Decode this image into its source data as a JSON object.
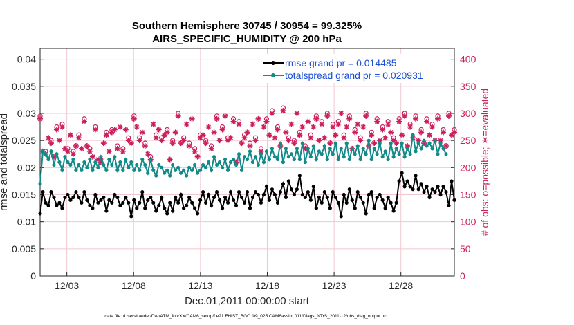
{
  "chart_data": {
    "type": "line",
    "title": "Southern Hemisphere 30745 / 30954 = 99.325%",
    "subtitle": "AIRS_SPECIFIC_HUMIDITY @ 200 hPa",
    "xlabel": "Dec.01,2011 00:00:00 start",
    "ylabel": "rmse and totalspread",
    "y2label": "# of obs: o=possible; ∗=evaluated",
    "footer": "data file: /Users/raeder/DAI/ATM_forcXX/CAM6_setup/f.e21.FHIST_BGC.f09_025.CAM6assim.011/Diags_NTrS_2011-12/obs_diag_output.nc",
    "x_ticks": [
      "12/03",
      "12/08",
      "12/13",
      "12/18",
      "12/23",
      "12/28"
    ],
    "x_tick_days": [
      3,
      8,
      13,
      18,
      23,
      28
    ],
    "xlim": [
      1,
      32
    ],
    "ylim": [
      0,
      0.042
    ],
    "y_ticks": [
      "0",
      "0.005",
      "0.01",
      "0.015",
      "0.02",
      "0.025",
      "0.03",
      "0.035",
      "0.04"
    ],
    "y2lim": [
      0,
      420
    ],
    "y2_ticks": [
      "0",
      "50",
      "100",
      "150",
      "200",
      "250",
      "300",
      "350",
      "400"
    ],
    "grid": true,
    "legend_position": "top-right",
    "colors": {
      "rmse": "#000000",
      "totalspread": "#138a8a",
      "obs": "#cc1f5c",
      "legend_text": "#1a4fd6",
      "grid": "#f0c8cf"
    },
    "series": [
      {
        "name": "rmse grand pr = 0.014485",
        "axis": "left",
        "values": [
          0.0115,
          0.0155,
          0.0135,
          0.013,
          0.0155,
          0.0145,
          0.013,
          0.0135,
          0.0125,
          0.0145,
          0.015,
          0.014,
          0.0145,
          0.0155,
          0.0145,
          0.0135,
          0.0155,
          0.014,
          0.013,
          0.0125,
          0.015,
          0.0135,
          0.014,
          0.0145,
          0.012,
          0.014,
          0.0135,
          0.015,
          0.0145,
          0.013,
          0.0135,
          0.0145,
          0.0135,
          0.011,
          0.014,
          0.0125,
          0.0135,
          0.0155,
          0.0125,
          0.014,
          0.0145,
          0.0135,
          0.012,
          0.013,
          0.0145,
          0.0125,
          0.0115,
          0.0135,
          0.012,
          0.0145,
          0.0135,
          0.015,
          0.0125,
          0.013,
          0.0145,
          0.0135,
          0.0125,
          0.0115,
          0.014,
          0.0155,
          0.0135,
          0.015,
          0.013,
          0.0145,
          0.0155,
          0.014,
          0.0125,
          0.0145,
          0.0135,
          0.0155,
          0.014,
          0.013,
          0.0155,
          0.0145,
          0.0135,
          0.0155,
          0.0125,
          0.0145,
          0.0155,
          0.015,
          0.0135,
          0.015,
          0.0165,
          0.014,
          0.016,
          0.015,
          0.0135,
          0.0155,
          0.017,
          0.0145,
          0.0175,
          0.016,
          0.015,
          0.016,
          0.0185,
          0.015,
          0.0145,
          0.0155,
          0.014,
          0.0165,
          0.0125,
          0.0145,
          0.0135,
          0.0155,
          0.0145,
          0.0125,
          0.0155,
          0.0145,
          0.0135,
          0.011,
          0.015,
          0.0135,
          0.016,
          0.014,
          0.0125,
          0.0155,
          0.0145,
          0.0135,
          0.0115,
          0.015,
          0.0155,
          0.0125,
          0.0145,
          0.015,
          0.014,
          0.0125,
          0.0145,
          0.0135,
          0.012,
          0.0135,
          0.0175,
          0.019,
          0.0165,
          0.0175,
          0.0165,
          0.016,
          0.0185,
          0.016,
          0.017,
          0.0155,
          0.0165,
          0.0145,
          0.016,
          0.0155,
          0.0165,
          0.015,
          0.0165,
          0.0155,
          0.013,
          0.0175,
          0.014
        ]
      },
      {
        "name": "totalspread grand pr = 0.020931",
        "axis": "left",
        "values": [
          0.017,
          0.023,
          0.0225,
          0.0215,
          0.023,
          0.0205,
          0.0225,
          0.021,
          0.0195,
          0.022,
          0.021,
          0.0205,
          0.0215,
          0.0195,
          0.0205,
          0.0195,
          0.021,
          0.02,
          0.0215,
          0.0195,
          0.021,
          0.02,
          0.022,
          0.0205,
          0.0195,
          0.0215,
          0.0205,
          0.022,
          0.0195,
          0.021,
          0.0195,
          0.0215,
          0.02,
          0.021,
          0.0195,
          0.0205,
          0.0195,
          0.0215,
          0.0205,
          0.019,
          0.0215,
          0.0195,
          0.0185,
          0.0205,
          0.02,
          0.019,
          0.0195,
          0.0185,
          0.0205,
          0.0195,
          0.02,
          0.019,
          0.0195,
          0.0185,
          0.02,
          0.0195,
          0.0205,
          0.019,
          0.0195,
          0.0205,
          0.02,
          0.021,
          0.0195,
          0.022,
          0.0205,
          0.021,
          0.02,
          0.0215,
          0.0195,
          0.021,
          0.0215,
          0.0205,
          0.0225,
          0.0195,
          0.022,
          0.0215,
          0.023,
          0.021,
          0.022,
          0.0205,
          0.0225,
          0.021,
          0.023,
          0.0215,
          0.0235,
          0.022,
          0.0215,
          0.0245,
          0.021,
          0.0235,
          0.022,
          0.0225,
          0.0215,
          0.0235,
          0.0215,
          0.0245,
          0.021,
          0.0235,
          0.022,
          0.024,
          0.0215,
          0.023,
          0.0225,
          0.024,
          0.0215,
          0.0235,
          0.0225,
          0.0245,
          0.0215,
          0.0235,
          0.022,
          0.0245,
          0.0215,
          0.0235,
          0.0225,
          0.024,
          0.0215,
          0.0235,
          0.0225,
          0.025,
          0.0215,
          0.0235,
          0.0225,
          0.0245,
          0.022,
          0.023,
          0.0215,
          0.0245,
          0.022,
          0.0235,
          0.0225,
          0.0245,
          0.022,
          0.0235,
          0.0225,
          0.026,
          0.023,
          0.0245,
          0.0235,
          0.025,
          0.024,
          0.0245,
          0.0235,
          0.025,
          0.0225,
          0.0245,
          0.0235,
          0.0225
        ]
      },
      {
        "name": "obs possible",
        "axis": "right",
        "marker": "o",
        "values": [
          290,
          230,
          225,
          255,
          245,
          220,
          270,
          250,
          275,
          235,
          230,
          260,
          225,
          240,
          255,
          235,
          285,
          240,
          230,
          220,
          270,
          215,
          210,
          245,
          260,
          230,
          265,
          270,
          235,
          275,
          230,
          270,
          250,
          245,
          290,
          275,
          250,
          265,
          240,
          225,
          215,
          280,
          255,
          270,
          250,
          260,
          265,
          215,
          245,
          265,
          295,
          245,
          250,
          280,
          240,
          290,
          230,
          220,
          255,
          260,
          245,
          275,
          235,
          265,
          290,
          250,
          270,
          295,
          250,
          255,
          285,
          210,
          280,
          245,
          255,
          265,
          240,
          280,
          250,
          290,
          230,
          275,
          285,
          260,
          300,
          255,
          270,
          240,
          305,
          265,
          250,
          280,
          245,
          300,
          260,
          275,
          235,
          285,
          255,
          275,
          290,
          250,
          280,
          255,
          295,
          245,
          275,
          260,
          280,
          300,
          255,
          275,
          290,
          235,
          265,
          280,
          250,
          275,
          295,
          240,
          260,
          245,
          285,
          250,
          270,
          255,
          280,
          265,
          250,
          245,
          285,
          260,
          295,
          240,
          275,
          255,
          290,
          250,
          265,
          245,
          285,
          260,
          275,
          250,
          290,
          250,
          265,
          240,
          295,
          260,
          265
        ]
      },
      {
        "name": "obs evaluated",
        "axis": "right",
        "marker": "*",
        "values": [
          290,
          230,
          225,
          255,
          245,
          220,
          270,
          250,
          275,
          235,
          230,
          260,
          225,
          240,
          255,
          235,
          285,
          240,
          230,
          220,
          270,
          215,
          210,
          245,
          260,
          230,
          265,
          270,
          235,
          275,
          230,
          270,
          250,
          245,
          290,
          275,
          250,
          265,
          240,
          225,
          215,
          280,
          255,
          270,
          250,
          260,
          265,
          215,
          245,
          265,
          295,
          245,
          250,
          280,
          240,
          290,
          230,
          220,
          255,
          260,
          245,
          275,
          235,
          265,
          290,
          250,
          270,
          295,
          250,
          255,
          285,
          210,
          280,
          245,
          255,
          265,
          240,
          280,
          250,
          290,
          230,
          275,
          285,
          260,
          300,
          255,
          270,
          240,
          305,
          265,
          250,
          280,
          245,
          300,
          260,
          275,
          235,
          285,
          255,
          275,
          290,
          250,
          280,
          255,
          295,
          245,
          275,
          260,
          280,
          300,
          255,
          275,
          290,
          235,
          265,
          280,
          250,
          275,
          295,
          240,
          260,
          245,
          285,
          250,
          270,
          255,
          280,
          265,
          250,
          245,
          285,
          260,
          295,
          240,
          275,
          255,
          290,
          250,
          265,
          245,
          285,
          260,
          275,
          250,
          290,
          250,
          265,
          240,
          295,
          260,
          265
        ]
      }
    ]
  }
}
